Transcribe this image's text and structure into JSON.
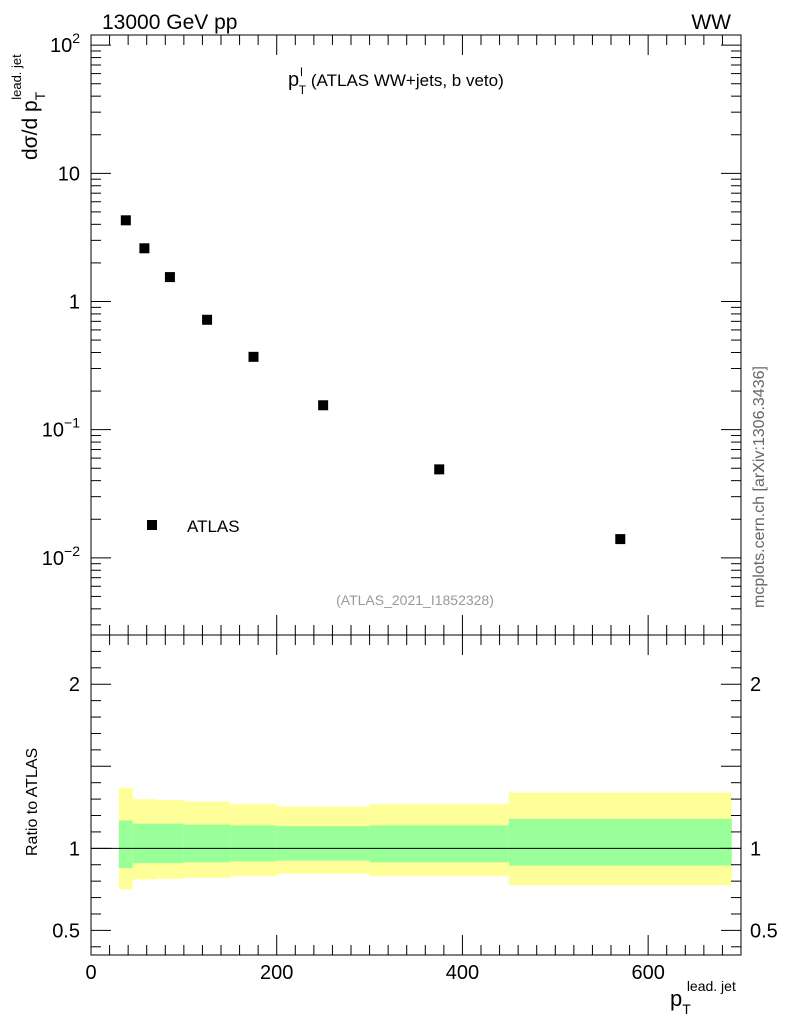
{
  "header": {
    "left": "13000 GeV pp",
    "right": "WW"
  },
  "chart_data": [
    {
      "type": "scatter",
      "title_main": "p",
      "title_sup": "l",
      "title_sub": "T",
      "title_rest": " (ATLAS WW+jets, b veto)",
      "ylabel_main": "dσ/d p",
      "ylabel_sub": "T",
      "ylabel_sup": "lead. jet",
      "ylim": [
        0.0025,
        120
      ],
      "yscale": "log",
      "yticks": [
        {
          "value": 0.01,
          "base": "10",
          "exp": "−2"
        },
        {
          "value": 0.1,
          "base": "10",
          "exp": "−1"
        },
        {
          "value": 1,
          "label": "1"
        },
        {
          "value": 10,
          "label": "10"
        },
        {
          "value": 100,
          "base": "10",
          "exp": "2"
        }
      ],
      "series": [
        {
          "name": "ATLAS",
          "x": [
            37.5,
            57.5,
            85,
            125,
            175,
            250,
            375,
            570
          ],
          "y": [
            4.3,
            2.6,
            1.55,
            0.72,
            0.37,
            0.155,
            0.049,
            0.014
          ]
        }
      ],
      "legend_position": "bottom-left",
      "analysis_label": "(ATLAS_2021_I1852328)",
      "grid": false
    },
    {
      "type": "area",
      "ylabel": "Ratio to ATLAS",
      "xlabel_main": "p",
      "xlabel_sub": "T",
      "xlabel_sup": "lead. jet",
      "xlim": [
        0,
        700
      ],
      "ylim": [
        0.35,
        2.3
      ],
      "yticks": [
        {
          "value": 0.5,
          "label": "0.5"
        },
        {
          "value": 1,
          "label": "1"
        },
        {
          "value": 2,
          "label": "2"
        }
      ],
      "xticks": [
        {
          "value": 0,
          "label": "0"
        },
        {
          "value": 200,
          "label": "200"
        },
        {
          "value": 400,
          "label": "400"
        },
        {
          "value": 600,
          "label": "600"
        }
      ],
      "bins": [
        {
          "x0": 30,
          "x1": 45,
          "inner": [
            0.88,
            1.17
          ],
          "outer": [
            0.75,
            1.37
          ]
        },
        {
          "x0": 45,
          "x1": 70,
          "inner": [
            0.91,
            1.15
          ],
          "outer": [
            0.81,
            1.3
          ]
        },
        {
          "x0": 70,
          "x1": 100,
          "inner": [
            0.91,
            1.15
          ],
          "outer": [
            0.815,
            1.295
          ]
        },
        {
          "x0": 100,
          "x1": 150,
          "inner": [
            0.915,
            1.145
          ],
          "outer": [
            0.82,
            1.285
          ]
        },
        {
          "x0": 150,
          "x1": 200,
          "inner": [
            0.92,
            1.14
          ],
          "outer": [
            0.83,
            1.27
          ]
        },
        {
          "x0": 200,
          "x1": 300,
          "inner": [
            0.925,
            1.135
          ],
          "outer": [
            0.845,
            1.255
          ]
        },
        {
          "x0": 300,
          "x1": 450,
          "inner": [
            0.915,
            1.14
          ],
          "outer": [
            0.83,
            1.27
          ]
        },
        {
          "x0": 450,
          "x1": 690,
          "inner": [
            0.895,
            1.18
          ],
          "outer": [
            0.775,
            1.34
          ]
        }
      ],
      "reference_line": 1,
      "grid": false
    }
  ],
  "watermark": "mcplots.cern.ch [arXiv:1306.3436]",
  "colors": {
    "inner_band": "#99ff99",
    "outer_band": "#ffff99",
    "marker": "#000000",
    "analysis_label": "#999999",
    "watermark": "#666666"
  }
}
